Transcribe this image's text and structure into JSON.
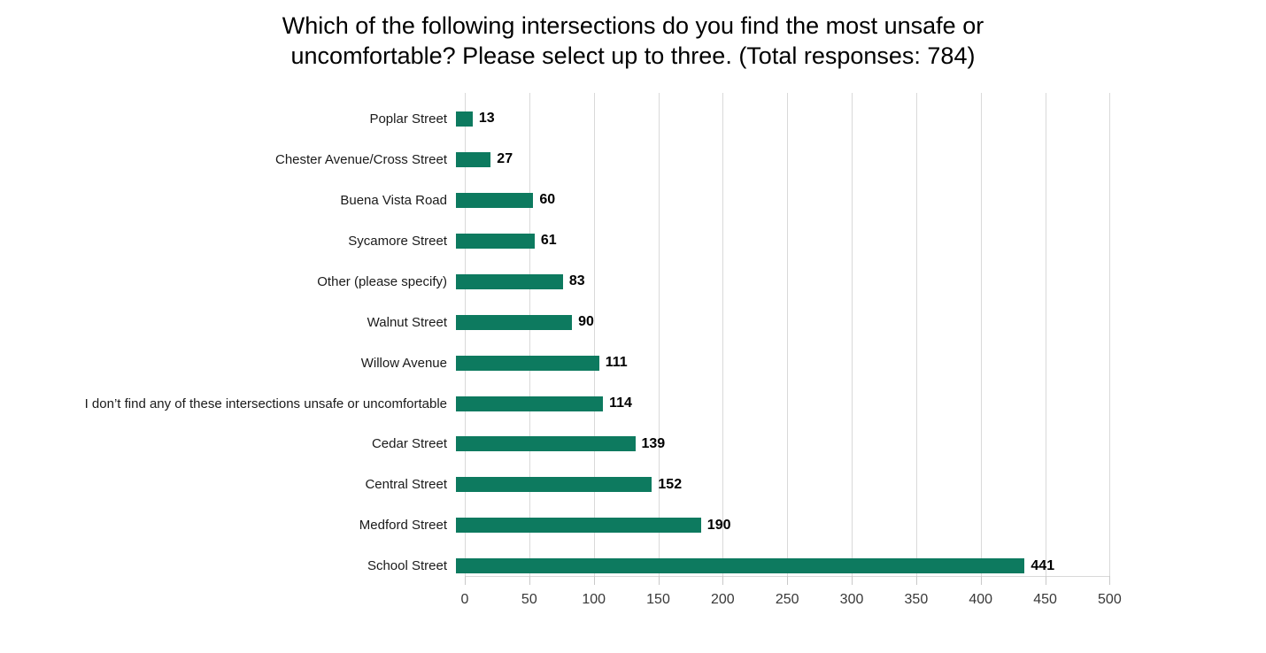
{
  "chart_data": {
    "type": "bar",
    "orientation": "horizontal",
    "title": "Which of the following intersections do you find the most unsafe or uncomfortable? Please select up to three. (Total responses: 784)",
    "title_lines": [
      "Which of the following intersections do you find the most unsafe or",
      "uncomfortable? Please select up to three. (Total responses: 784)"
    ],
    "total_responses": 784,
    "categories": [
      "Poplar Street",
      "Chester Avenue/Cross Street",
      "Buena Vista Road",
      "Sycamore Street",
      "Other (please specify)",
      "Walnut Street",
      "Willow Avenue",
      "I don’t find any of these intersections unsafe or uncomfortable",
      "Cedar Street",
      "Central Street",
      "Medford Street",
      "School Street"
    ],
    "values": [
      13,
      27,
      60,
      61,
      83,
      90,
      111,
      114,
      139,
      152,
      190,
      441
    ],
    "xlabel": "",
    "ylabel": "",
    "xlim": [
      0,
      500
    ],
    "x_ticks": [
      0,
      50,
      100,
      150,
      200,
      250,
      300,
      350,
      400,
      450,
      500
    ],
    "grid": "vertical",
    "legend": "none",
    "data_labels": true,
    "colors": {
      "bar": "#0d7a5f",
      "gridline": "#d9d9d9",
      "axis_line": "#d9d9d9",
      "tick": "#c9c9c9",
      "title_text": "#000000",
      "category_text": "#1a1a1a",
      "value_text": "#000000",
      "axis_text": "#383838",
      "background": "#ffffff"
    }
  }
}
